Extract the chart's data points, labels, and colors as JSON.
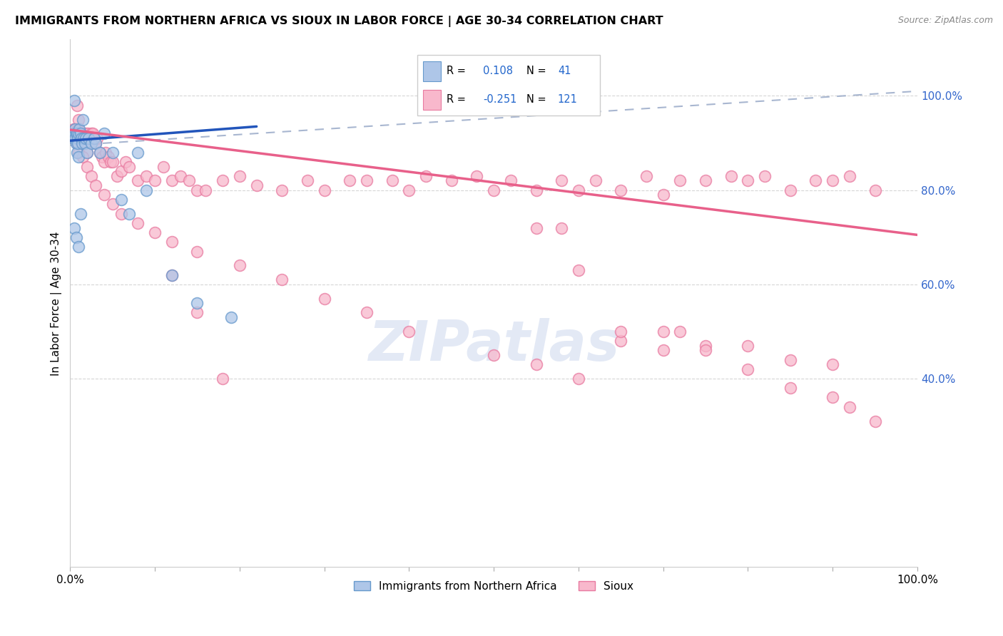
{
  "title": "IMMIGRANTS FROM NORTHERN AFRICA VS SIOUX IN LABOR FORCE | AGE 30-34 CORRELATION CHART",
  "source": "Source: ZipAtlas.com",
  "ylabel": "In Labor Force | Age 30-34",
  "blue_R": 0.108,
  "blue_N": 41,
  "pink_R": -0.251,
  "pink_N": 121,
  "watermark": "ZIPatlas",
  "xlim": [
    0.0,
    1.0
  ],
  "ylim": [
    0.0,
    1.12
  ],
  "ytick_vals": [
    1.0,
    0.8,
    0.6,
    0.4
  ],
  "ytick_labels": [
    "100.0%",
    "80.0%",
    "60.0%",
    "40.0%"
  ],
  "xtick_vals": [
    0.0,
    0.1,
    0.2,
    0.3,
    0.4,
    0.5,
    0.6,
    0.7,
    0.8,
    0.9,
    1.0
  ],
  "xtick_labels": [
    "0.0%",
    "",
    "",
    "",
    "",
    "",
    "",
    "",
    "",
    "",
    "100.0%"
  ],
  "blue_line_x0": 0.0,
  "blue_line_x1": 0.22,
  "blue_line_y0": 0.905,
  "blue_line_y1": 0.935,
  "dash_line_x0": 0.0,
  "dash_line_x1": 1.0,
  "dash_line_y0": 0.895,
  "dash_line_y1": 1.01,
  "pink_line_x0": 0.0,
  "pink_line_x1": 1.0,
  "pink_line_y0": 0.928,
  "pink_line_y1": 0.705,
  "blue_dot_color": "#aec6e8",
  "blue_edge_color": "#6699cc",
  "pink_dot_color": "#f8b8cc",
  "pink_edge_color": "#e87aa0",
  "blue_line_color": "#2255bb",
  "dash_line_color": "#99aac8",
  "pink_line_color": "#e8608a",
  "legend_blue_label": "R =  0.108   N =  41",
  "legend_pink_label": "R = -0.251   N = 121",
  "bottom_legend_blue": "Immigrants from Northern Africa",
  "bottom_legend_pink": "Sioux",
  "blue_x": [
    0.003,
    0.004,
    0.005,
    0.005,
    0.006,
    0.006,
    0.007,
    0.007,
    0.008,
    0.008,
    0.009,
    0.009,
    0.01,
    0.01,
    0.011,
    0.012,
    0.013,
    0.014,
    0.015,
    0.016,
    0.017,
    0.018,
    0.02,
    0.022,
    0.025,
    0.028,
    0.03,
    0.035,
    0.04,
    0.05,
    0.06,
    0.07,
    0.08,
    0.09,
    0.12,
    0.15,
    0.19,
    0.005,
    0.007,
    0.01,
    0.012
  ],
  "blue_y": [
    0.92,
    0.91,
    0.92,
    0.99,
    0.91,
    0.93,
    0.9,
    0.92,
    0.88,
    0.92,
    0.91,
    0.9,
    0.87,
    0.92,
    0.93,
    0.92,
    0.91,
    0.9,
    0.95,
    0.91,
    0.9,
    0.91,
    0.88,
    0.91,
    0.9,
    0.91,
    0.9,
    0.88,
    0.92,
    0.88,
    0.78,
    0.75,
    0.88,
    0.8,
    0.62,
    0.56,
    0.53,
    0.72,
    0.7,
    0.68,
    0.75
  ],
  "pink_x": [
    0.003,
    0.004,
    0.005,
    0.006,
    0.007,
    0.008,
    0.009,
    0.01,
    0.01,
    0.011,
    0.012,
    0.013,
    0.014,
    0.015,
    0.016,
    0.017,
    0.018,
    0.019,
    0.02,
    0.021,
    0.022,
    0.025,
    0.027,
    0.028,
    0.03,
    0.032,
    0.035,
    0.038,
    0.04,
    0.042,
    0.045,
    0.048,
    0.05,
    0.055,
    0.06,
    0.065,
    0.07,
    0.08,
    0.09,
    0.1,
    0.11,
    0.12,
    0.13,
    0.14,
    0.15,
    0.16,
    0.18,
    0.2,
    0.22,
    0.25,
    0.28,
    0.3,
    0.33,
    0.35,
    0.38,
    0.4,
    0.42,
    0.45,
    0.48,
    0.5,
    0.52,
    0.55,
    0.58,
    0.6,
    0.62,
    0.65,
    0.68,
    0.7,
    0.72,
    0.75,
    0.78,
    0.8,
    0.82,
    0.85,
    0.88,
    0.9,
    0.92,
    0.95,
    0.005,
    0.008,
    0.01,
    0.015,
    0.02,
    0.025,
    0.03,
    0.04,
    0.05,
    0.06,
    0.08,
    0.1,
    0.12,
    0.15,
    0.2,
    0.25,
    0.3,
    0.35,
    0.4,
    0.5,
    0.55,
    0.6,
    0.65,
    0.7,
    0.72,
    0.75,
    0.8,
    0.85,
    0.9,
    0.12,
    0.15,
    0.18,
    0.55,
    0.58,
    0.6,
    0.65,
    0.7,
    0.75,
    0.8,
    0.85,
    0.9,
    0.92,
    0.95
  ],
  "pink_y": [
    0.92,
    0.93,
    0.91,
    0.93,
    0.92,
    0.98,
    0.93,
    0.93,
    0.95,
    0.92,
    0.91,
    0.9,
    0.9,
    0.9,
    0.91,
    0.9,
    0.92,
    0.91,
    0.88,
    0.92,
    0.91,
    0.92,
    0.92,
    0.91,
    0.9,
    0.91,
    0.88,
    0.87,
    0.86,
    0.88,
    0.87,
    0.86,
    0.86,
    0.83,
    0.84,
    0.86,
    0.85,
    0.82,
    0.83,
    0.82,
    0.85,
    0.82,
    0.83,
    0.82,
    0.8,
    0.8,
    0.82,
    0.83,
    0.81,
    0.8,
    0.82,
    0.8,
    0.82,
    0.82,
    0.82,
    0.8,
    0.83,
    0.82,
    0.83,
    0.8,
    0.82,
    0.8,
    0.82,
    0.8,
    0.82,
    0.8,
    0.83,
    0.79,
    0.82,
    0.82,
    0.83,
    0.82,
    0.83,
    0.8,
    0.82,
    0.82,
    0.83,
    0.8,
    0.91,
    0.9,
    0.88,
    0.87,
    0.85,
    0.83,
    0.81,
    0.79,
    0.77,
    0.75,
    0.73,
    0.71,
    0.69,
    0.67,
    0.64,
    0.61,
    0.57,
    0.54,
    0.5,
    0.45,
    0.43,
    0.4,
    0.48,
    0.46,
    0.5,
    0.47,
    0.47,
    0.44,
    0.43,
    0.62,
    0.54,
    0.4,
    0.72,
    0.72,
    0.63,
    0.5,
    0.5,
    0.46,
    0.42,
    0.38,
    0.36,
    0.34,
    0.31
  ]
}
